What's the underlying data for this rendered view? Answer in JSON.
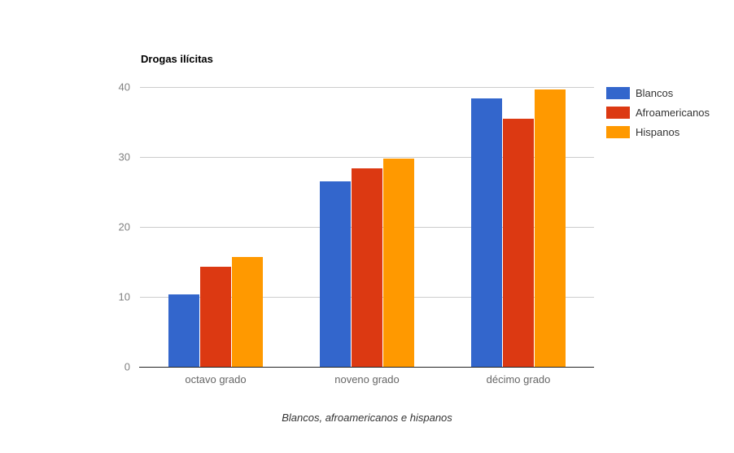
{
  "page": {
    "background": "#ffffff"
  },
  "chart_data": {
    "type": "bar",
    "title": "Drogas ilícitas",
    "caption": "Blancos, afroamericanos e hispanos",
    "categories": [
      "octavo grado",
      "noveno grado",
      "décimo grado"
    ],
    "series": [
      {
        "name": "Blancos",
        "color": "#3366CC",
        "values": [
          10.3,
          26.5,
          38.4
        ]
      },
      {
        "name": "Afroamericanos",
        "color": "#DC3912",
        "values": [
          14.3,
          28.4,
          35.5
        ]
      },
      {
        "name": "Hispanos",
        "color": "#FF9900",
        "values": [
          15.7,
          29.8,
          39.6
        ]
      }
    ],
    "xlabel": "",
    "ylabel": "",
    "ylim": [
      0,
      40
    ],
    "yticks": [
      0,
      10,
      20,
      30,
      40
    ],
    "grid": true,
    "legend_position": "right"
  },
  "style_colors": {
    "gridline": "#cccccc",
    "baseline": "#222222",
    "y_tick_label": "#808080",
    "x_tick_label": "#666666",
    "legend_text": "#333333",
    "title_text": "#000000",
    "caption_text": "#333333"
  }
}
